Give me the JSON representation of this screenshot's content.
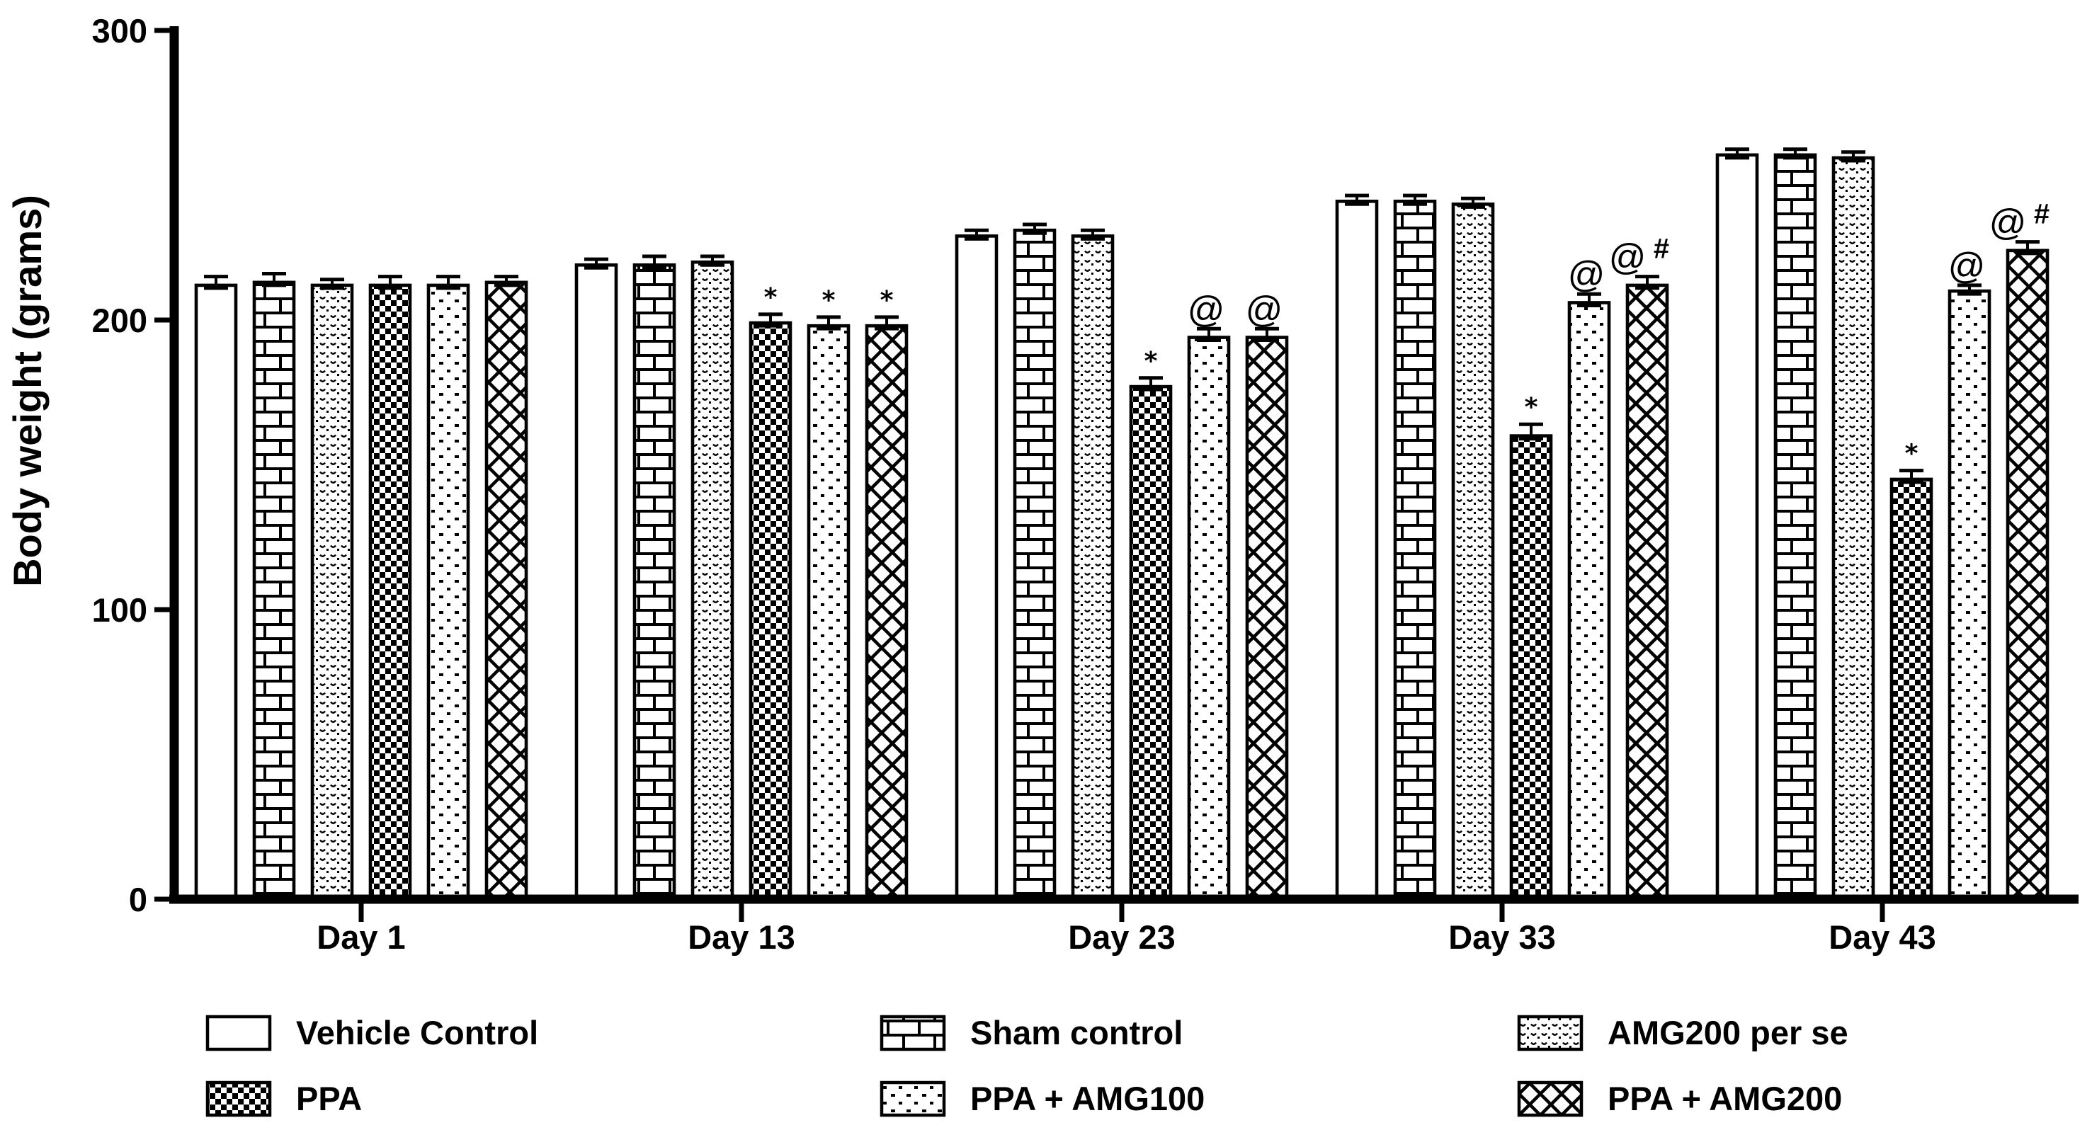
{
  "figure": {
    "background_color": "#ffffff",
    "ink_color": "#000000"
  },
  "chart_data": {
    "type": "bar",
    "title": "",
    "xlabel": "",
    "ylabel": "Body weight (grams)",
    "ylim": [
      0,
      300
    ],
    "yticks": [
      0,
      100,
      200,
      300
    ],
    "grid": false,
    "error_bars": "upper SEM with caps",
    "legend_position": "bottom",
    "categories": [
      "Day 1",
      "Day 13",
      "Day 23",
      "Day 33",
      "Day 43"
    ],
    "series": [
      {
        "name": "Vehicle Control",
        "pattern": "plain-white",
        "values": [
          212,
          219,
          229,
          241,
          257
        ],
        "sem": [
          3,
          2,
          2,
          2,
          2
        ],
        "annotations": [
          "",
          "",
          "",
          "",
          ""
        ]
      },
      {
        "name": "Sham control",
        "pattern": "brick",
        "values": [
          213,
          219,
          231,
          241,
          257
        ],
        "sem": [
          3,
          3,
          2,
          2,
          2
        ],
        "annotations": [
          "",
          "",
          "",
          "",
          ""
        ]
      },
      {
        "name": "AMG200 per se",
        "pattern": "scale-dots",
        "values": [
          212,
          220,
          229,
          240,
          256
        ],
        "sem": [
          2,
          2,
          2,
          2,
          2
        ],
        "annotations": [
          "",
          "",
          "",
          "",
          ""
        ]
      },
      {
        "name": "PPA",
        "pattern": "checkerboard",
        "values": [
          212,
          199,
          177,
          160,
          145
        ],
        "sem": [
          3,
          3,
          3,
          4,
          3
        ],
        "annotations": [
          "",
          "*",
          "*",
          "*",
          "*"
        ]
      },
      {
        "name": "PPA + AMG100",
        "pattern": "sparse-dots",
        "values": [
          212,
          198,
          194,
          206,
          210
        ],
        "sem": [
          3,
          3,
          3,
          3,
          2
        ],
        "annotations": [
          "",
          "*",
          "@",
          "@",
          "@"
        ]
      },
      {
        "name": "PPA + AMG200",
        "pattern": "diagonal-crosshatch",
        "values": [
          213,
          198,
          194,
          212,
          224
        ],
        "sem": [
          2,
          3,
          3,
          3,
          3
        ],
        "annotations": [
          "",
          "*",
          "@",
          "@#",
          "@#"
        ]
      }
    ],
    "legend_columns": [
      [
        "Vehicle Control",
        "PPA"
      ],
      [
        "Sham control",
        "PPA + AMG100"
      ],
      [
        "AMG200 per se",
        "PPA + AMG200"
      ]
    ],
    "significance_markers": {
      "star": "*",
      "at": "@",
      "hash": "#"
    }
  }
}
